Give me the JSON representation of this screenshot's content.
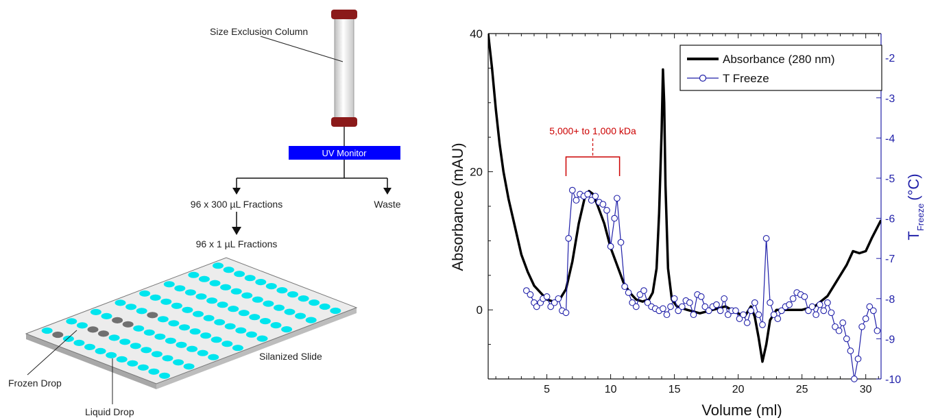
{
  "schematic": {
    "column_label": "Size Exclusion Column",
    "uv_monitor_label": "UV Monitor",
    "fractions_300_label": "96 x 300 µL Fractions",
    "waste_label": "Waste",
    "fractions_1_label": "96 x 1 µL Fractions",
    "slide_label": "Silanized Slide",
    "frozen_drop_label": "Frozen Drop",
    "liquid_drop_label": "Liquid Drop",
    "colors": {
      "uv_monitor": "#0000ff",
      "liquid_drop": "#00e5ee",
      "frozen_drop": "#707070",
      "column_cap": "#8b1a1a"
    },
    "frozen_drops": [
      [
        0,
        1
      ],
      [
        1,
        2
      ],
      [
        1,
        3
      ],
      [
        2,
        2
      ],
      [
        2,
        3
      ],
      [
        3,
        3
      ]
    ]
  },
  "chart_data": {
    "type": "line",
    "xlabel": "Volume (ml)",
    "ylabel": "Absorbance (mAU)",
    "y2label": "T",
    "y2label_sub": "Freeze",
    "y2label_unit": "(°C)",
    "xlim": [
      0.4,
      31.2
    ],
    "ylim": [
      -10,
      40
    ],
    "y2lim": [
      -10,
      -1.4
    ],
    "xticks": [
      5,
      10,
      15,
      20,
      25,
      30
    ],
    "yticks": [
      0,
      20,
      40
    ],
    "y2ticks": [
      -10,
      -9,
      -8,
      -7,
      -6,
      -5,
      -4,
      -3,
      -2
    ],
    "legend_position": "top-right",
    "annotation": {
      "text": "5,000+ to 1,000 kDa",
      "x_start": 6.5,
      "x_end": 10.7,
      "color": "#cc0000"
    },
    "series": [
      {
        "name": "Absorbance (280 nm)",
        "axis": "left",
        "color": "#000000",
        "x": [
          0.4,
          0.7,
          1.0,
          1.3,
          1.6,
          2.0,
          2.5,
          3.0,
          3.5,
          4.0,
          4.5,
          5.0,
          5.5,
          6.0,
          6.5,
          7.0,
          7.5,
          8.0,
          8.3,
          8.6,
          9.0,
          9.5,
          10.0,
          10.5,
          11.0,
          11.5,
          12.0,
          12.5,
          13.0,
          13.3,
          13.6,
          13.8,
          14.0,
          14.1,
          14.2,
          14.3,
          14.5,
          14.8,
          15.2,
          16.0,
          17.0,
          18.0,
          19.0,
          19.5,
          20.0,
          20.5,
          21.0,
          21.3,
          21.6,
          21.9,
          22.2,
          22.5,
          23.0,
          24.0,
          25.0,
          26.0,
          27.0,
          27.5,
          28.0,
          28.5,
          29.0,
          29.5,
          30.0,
          30.5,
          31.2
        ],
        "y": [
          40,
          35,
          29,
          24,
          20,
          16,
          12,
          8,
          5.5,
          3.5,
          2.5,
          1.5,
          1.2,
          1.5,
          3,
          7,
          12.5,
          16.5,
          17.2,
          16.8,
          15,
          12.5,
          9,
          6.5,
          4,
          2.5,
          1.5,
          1.2,
          1.5,
          2.5,
          6,
          14,
          26,
          34.8,
          30,
          18,
          6,
          1.5,
          0.5,
          0,
          -0.5,
          0,
          0.5,
          0,
          -0.5,
          -1,
          0.5,
          -1,
          -4,
          -7.5,
          -5,
          -1.5,
          0,
          0,
          0,
          0.5,
          2,
          3.5,
          5,
          6.5,
          8.5,
          8.2,
          8.5,
          10.5,
          13
        ]
      },
      {
        "name": "T Freeze",
        "axis": "right",
        "color": "#1e1ea8",
        "x": [
          3.4,
          3.7,
          4.0,
          4.2,
          4.5,
          4.7,
          5.0,
          5.3,
          5.6,
          5.9,
          6.2,
          6.5,
          6.7,
          7.0,
          7.3,
          7.6,
          7.9,
          8.2,
          8.5,
          8.8,
          9.1,
          9.4,
          9.7,
          10.0,
          10.3,
          10.5,
          10.8,
          11.1,
          11.4,
          11.7,
          12.0,
          12.3,
          12.6,
          12.9,
          13.2,
          13.5,
          13.8,
          14.1,
          14.4,
          14.7,
          15.0,
          15.3,
          15.6,
          15.9,
          16.2,
          16.5,
          16.8,
          17.1,
          17.4,
          17.7,
          18.0,
          18.3,
          18.6,
          18.9,
          19.2,
          19.5,
          19.8,
          20.1,
          20.4,
          20.7,
          21.0,
          21.3,
          21.6,
          21.9,
          22.2,
          22.5,
          22.8,
          23.1,
          23.4,
          23.7,
          24.0,
          24.3,
          24.6,
          24.9,
          25.2,
          25.5,
          25.8,
          26.1,
          26.4,
          26.7,
          27.0,
          27.3,
          27.6,
          27.9,
          28.2,
          28.5,
          28.8,
          29.1,
          29.4,
          29.7,
          30.0,
          30.3,
          30.6,
          30.9
        ],
        "y": [
          -7.8,
          -7.9,
          -8.1,
          -8.2,
          -8.1,
          -8.0,
          -7.95,
          -8.2,
          -8.1,
          -8.0,
          -8.3,
          -8.35,
          -6.5,
          -5.3,
          -5.55,
          -5.4,
          -5.45,
          -5.4,
          -5.55,
          -5.45,
          -5.6,
          -5.65,
          -5.8,
          -6.7,
          -6.0,
          -5.5,
          -6.6,
          -7.7,
          -7.85,
          -8.1,
          -8.2,
          -7.9,
          -7.8,
          -8.1,
          -8.2,
          -8.25,
          -8.3,
          -8.25,
          -8.4,
          -8.2,
          -8.0,
          -8.3,
          -8.2,
          -8.05,
          -8.1,
          -8.4,
          -7.9,
          -7.95,
          -8.2,
          -8.3,
          -8.2,
          -8.15,
          -8.3,
          -8.0,
          -8.4,
          -8.3,
          -8.3,
          -8.5,
          -8.4,
          -8.6,
          -8.3,
          -8.1,
          -8.4,
          -8.65,
          -6.5,
          -8.1,
          -8.4,
          -8.5,
          -8.3,
          -8.2,
          -8.15,
          -8.0,
          -7.85,
          -7.9,
          -7.95,
          -8.3,
          -8.2,
          -8.4,
          -8.15,
          -8.3,
          -8.1,
          -8.35,
          -8.7,
          -8.8,
          -8.6,
          -9.0,
          -9.3,
          -10.0,
          -9.5,
          -8.7,
          -8.5,
          -8.2,
          -8.3,
          -8.8
        ]
      }
    ]
  }
}
